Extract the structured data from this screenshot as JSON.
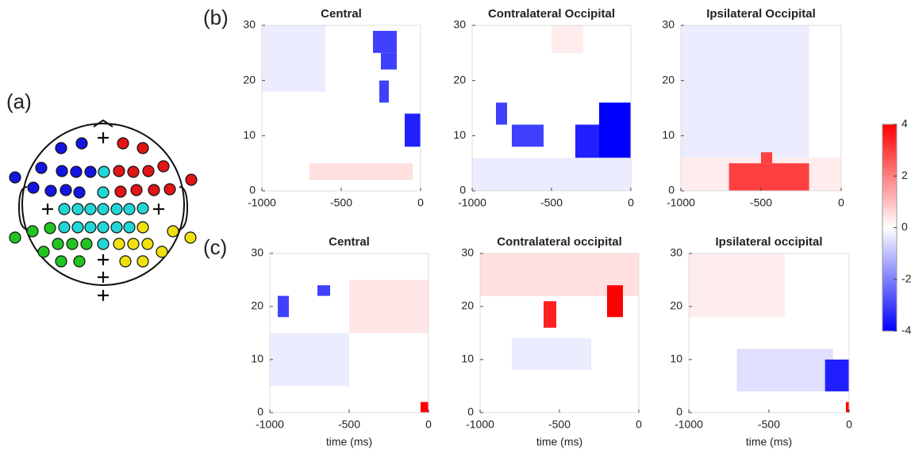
{
  "panel_labels": [
    "(a)",
    "(b)",
    "(c)"
  ],
  "colorbar": {
    "clim": [
      -4,
      4
    ],
    "ticks": [
      4,
      2,
      0,
      -2,
      -4
    ]
  },
  "chart_data": [
    {
      "type": "heatmap",
      "title": "Central",
      "xlim": [
        -1000,
        0
      ],
      "ylim": [
        0,
        30
      ],
      "xticks": [
        -1000,
        -500,
        0
      ],
      "yticks": [
        0,
        10,
        20,
        30
      ],
      "cells": [
        {
          "x": [
            -1000,
            -600
          ],
          "y": [
            18,
            30
          ],
          "value": -0.3
        },
        {
          "x": [
            -700,
            -50
          ],
          "y": [
            2,
            5
          ],
          "value": 0.5
        },
        {
          "x": [
            -300,
            -150
          ],
          "y": [
            25,
            29
          ],
          "value": -3
        },
        {
          "x": [
            -250,
            -150
          ],
          "y": [
            22,
            25
          ],
          "value": -3
        },
        {
          "x": [
            -260,
            -200
          ],
          "y": [
            16,
            20
          ],
          "value": -3
        },
        {
          "x": [
            -100,
            0
          ],
          "y": [
            8,
            14
          ],
          "value": -3.5
        }
      ]
    },
    {
      "type": "heatmap",
      "title": "Contralateral Occipital",
      "xlim": [
        -1000,
        0
      ],
      "ylim": [
        0,
        30
      ],
      "xticks": [
        -1000,
        -500,
        0
      ],
      "yticks": [
        0,
        10,
        20,
        30
      ],
      "cells": [
        {
          "x": [
            -500,
            -300
          ],
          "y": [
            25,
            30
          ],
          "value": 0.3
        },
        {
          "x": [
            -1000,
            0
          ],
          "y": [
            0,
            6
          ],
          "value": -0.3
        },
        {
          "x": [
            -850,
            -780
          ],
          "y": [
            12,
            16
          ],
          "value": -3
        },
        {
          "x": [
            -750,
            -550
          ],
          "y": [
            8,
            12
          ],
          "value": -3
        },
        {
          "x": [
            -350,
            -200
          ],
          "y": [
            6,
            12
          ],
          "value": -3.5
        },
        {
          "x": [
            -200,
            0
          ],
          "y": [
            6,
            16
          ],
          "value": -4
        }
      ]
    },
    {
      "type": "heatmap",
      "title": "Ipsilateral Occipital",
      "xlim": [
        -1000,
        0
      ],
      "ylim": [
        0,
        30
      ],
      "xticks": [
        -1000,
        -500,
        0
      ],
      "yticks": [
        0,
        10,
        20,
        30
      ],
      "cells": [
        {
          "x": [
            -1000,
            -200
          ],
          "y": [
            6,
            30
          ],
          "value": -0.3
        },
        {
          "x": [
            -1000,
            0
          ],
          "y": [
            0,
            6
          ],
          "value": 0.3
        },
        {
          "x": [
            -700,
            -200
          ],
          "y": [
            0,
            5
          ],
          "value": 3
        },
        {
          "x": [
            -500,
            -430
          ],
          "y": [
            5,
            7
          ],
          "value": 3
        }
      ]
    },
    {
      "type": "heatmap",
      "title": "Central",
      "xlabel": "time (ms)",
      "xlim": [
        -1000,
        0
      ],
      "ylim": [
        0,
        30
      ],
      "xticks": [
        -1000,
        -500,
        0
      ],
      "yticks": [
        0,
        10,
        20,
        30
      ],
      "cells": [
        {
          "x": [
            -500,
            0
          ],
          "y": [
            15,
            25
          ],
          "value": 0.4
        },
        {
          "x": [
            -1000,
            -500
          ],
          "y": [
            5,
            15
          ],
          "value": -0.3
        },
        {
          "x": [
            -950,
            -880
          ],
          "y": [
            18,
            22
          ],
          "value": -3
        },
        {
          "x": [
            -700,
            -620
          ],
          "y": [
            22,
            24
          ],
          "value": -3
        },
        {
          "x": [
            -50,
            0
          ],
          "y": [
            0,
            2
          ],
          "value": 4
        }
      ]
    },
    {
      "type": "heatmap",
      "title": "Contralateral occipital",
      "xlabel": "time (ms)",
      "xlim": [
        -1000,
        0
      ],
      "ylim": [
        0,
        30
      ],
      "xticks": [
        -1000,
        -500,
        0
      ],
      "yticks": [
        0,
        10,
        20,
        30
      ],
      "cells": [
        {
          "x": [
            -1000,
            0
          ],
          "y": [
            22,
            30
          ],
          "value": 0.5
        },
        {
          "x": [
            -800,
            -300
          ],
          "y": [
            8,
            14
          ],
          "value": -0.3
        },
        {
          "x": [
            -600,
            -520
          ],
          "y": [
            16,
            21
          ],
          "value": 3.5
        },
        {
          "x": [
            -200,
            -100
          ],
          "y": [
            18,
            24
          ],
          "value": 4
        }
      ]
    },
    {
      "type": "heatmap",
      "title": "Ipsilateral occipital",
      "xlabel": "time (ms)",
      "xlim": [
        -1000,
        0
      ],
      "ylim": [
        0,
        30
      ],
      "xticks": [
        -1000,
        -500,
        0
      ],
      "yticks": [
        0,
        10,
        20,
        30
      ],
      "cells": [
        {
          "x": [
            -1000,
            -400
          ],
          "y": [
            18,
            30
          ],
          "value": 0.3
        },
        {
          "x": [
            -700,
            -100
          ],
          "y": [
            4,
            12
          ],
          "value": -0.5
        },
        {
          "x": [
            -150,
            0
          ],
          "y": [
            4,
            10
          ],
          "value": -3.5
        },
        {
          "x": [
            -20,
            0
          ],
          "y": [
            0,
            2
          ],
          "value": 4
        }
      ]
    }
  ]
}
